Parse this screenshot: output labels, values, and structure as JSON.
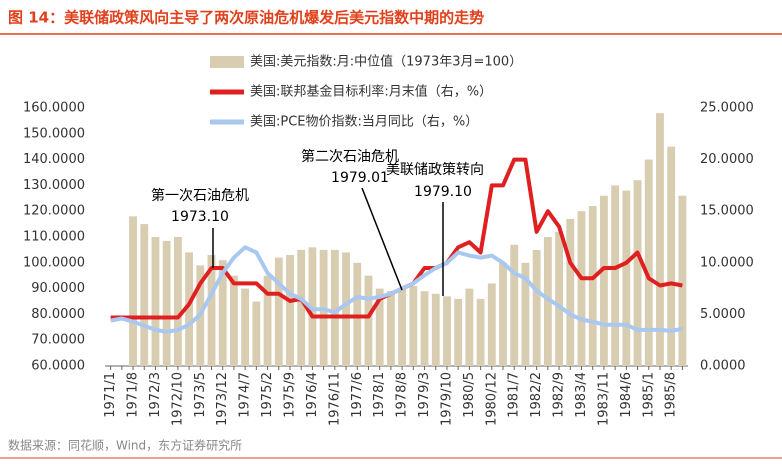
{
  "chart_data": {
    "type": "combo",
    "title": "图 14：美联储政策风向主导了两次原油危机爆发后美元指数中期的走势",
    "source": "数据来源：同花顺，Wind，东方证券研究所",
    "categories": [
      "1971/1",
      null,
      "1971/8",
      null,
      "1972/3",
      null,
      "1972/10",
      null,
      "1973/5",
      null,
      "1973/12",
      null,
      "1974/7",
      null,
      "1975/2",
      null,
      "1975/9",
      null,
      "1976/4",
      null,
      "1976/11",
      null,
      "1977/6",
      null,
      "1978/1",
      null,
      "1978/8",
      null,
      "1979/3",
      null,
      "1979/10",
      null,
      "1980/5",
      null,
      "1980/12",
      null,
      "1981/7",
      null,
      "1982/2",
      null,
      "1982/9",
      null,
      "1983/4",
      null,
      "1983/11",
      null,
      "1984/6",
      null,
      "1985/1",
      null,
      "1985/8",
      null
    ],
    "series": [
      {
        "name": "美国:美元指数:月:中位值（1973年3月=100）",
        "type": "bar",
        "axis": "y",
        "color": "#d8ccb1",
        "values": [
          null,
          null,
          118,
          115,
          110,
          108.5,
          110,
          104,
          99,
          103,
          101,
          95,
          90,
          85,
          95,
          102,
          103,
          105,
          106,
          105,
          105,
          104,
          100,
          95,
          90,
          89,
          90,
          91,
          89,
          88,
          87,
          86,
          90,
          86,
          92,
          100,
          107,
          100,
          105,
          110,
          112,
          117,
          120,
          122,
          126,
          130,
          128,
          132,
          140,
          158,
          145,
          126
        ]
      },
      {
        "name": "美国:联邦基金目标利率:月末值（右，%）",
        "type": "line",
        "axis": "y2",
        "color": "#e02020",
        "values": [
          4.7,
          4.7,
          4.7,
          4.7,
          4.7,
          4.7,
          4.7,
          6,
          8,
          9.5,
          9.5,
          8,
          8,
          8,
          7,
          7,
          6.3,
          6.5,
          4.8,
          4.8,
          4.8,
          4.8,
          4.8,
          4.8,
          6.5,
          7,
          7.5,
          8,
          9.5,
          9.5,
          10,
          11.5,
          12,
          11,
          17.5,
          17.5,
          20,
          20,
          13,
          15,
          13.5,
          10,
          8.5,
          8.5,
          9.5,
          9.5,
          10,
          11,
          8.5,
          7.8,
          8,
          7.8
        ]
      },
      {
        "name": "美国:PCE物价指数:当月同比（右，%）",
        "type": "line",
        "axis": "y2",
        "color": "#a9c8f0",
        "values": [
          4.4,
          4.6,
          4.3,
          3.9,
          3.5,
          3.3,
          3.5,
          4,
          5,
          7,
          9,
          10.5,
          11.5,
          11,
          9,
          8,
          7,
          6.5,
          5.5,
          5.5,
          5.2,
          6,
          6.7,
          6.5,
          6.7,
          7,
          7.5,
          8,
          8.8,
          9.5,
          10,
          11,
          10.7,
          10.5,
          10.7,
          10,
          9,
          8.5,
          7.3,
          6.5,
          5.8,
          5,
          4.5,
          4.3,
          4,
          4,
          4,
          3.5,
          3.5,
          3.5,
          3.4,
          3.6
        ]
      }
    ],
    "ylim": [
      60,
      160
    ],
    "yticks": [
      {
        "value": 60,
        "label": "60.0000"
      },
      {
        "value": 70,
        "label": "70.0000"
      },
      {
        "value": 80,
        "label": "80.0000"
      },
      {
        "value": 90,
        "label": "90.0000"
      },
      {
        "value": 100,
        "label": "100.0000"
      },
      {
        "value": 110,
        "label": "110.0000"
      },
      {
        "value": 120,
        "label": "120.0000"
      },
      {
        "value": 130,
        "label": "130.0000"
      },
      {
        "value": 140,
        "label": "140.0000"
      },
      {
        "value": 150,
        "label": "150.0000"
      },
      {
        "value": 160,
        "label": "160.0000"
      }
    ],
    "y2lim": [
      0,
      25
    ],
    "y2ticks": [
      {
        "value": 0,
        "label": "0.0000"
      },
      {
        "value": 5,
        "label": "5.0000"
      },
      {
        "value": 10,
        "label": "10.0000"
      },
      {
        "value": 15,
        "label": "15.0000"
      },
      {
        "value": 20,
        "label": "20.0000"
      },
      {
        "value": 25,
        "label": "25.0000"
      }
    ],
    "annotations": [
      {
        "lines": [
          "第一次石油危机",
          "1973.10"
        ]
      },
      {
        "lines": [
          "第二次石油危机",
          "1979.01"
        ]
      },
      {
        "lines": [
          "美联储政策转向",
          "1979.10"
        ]
      }
    ]
  }
}
